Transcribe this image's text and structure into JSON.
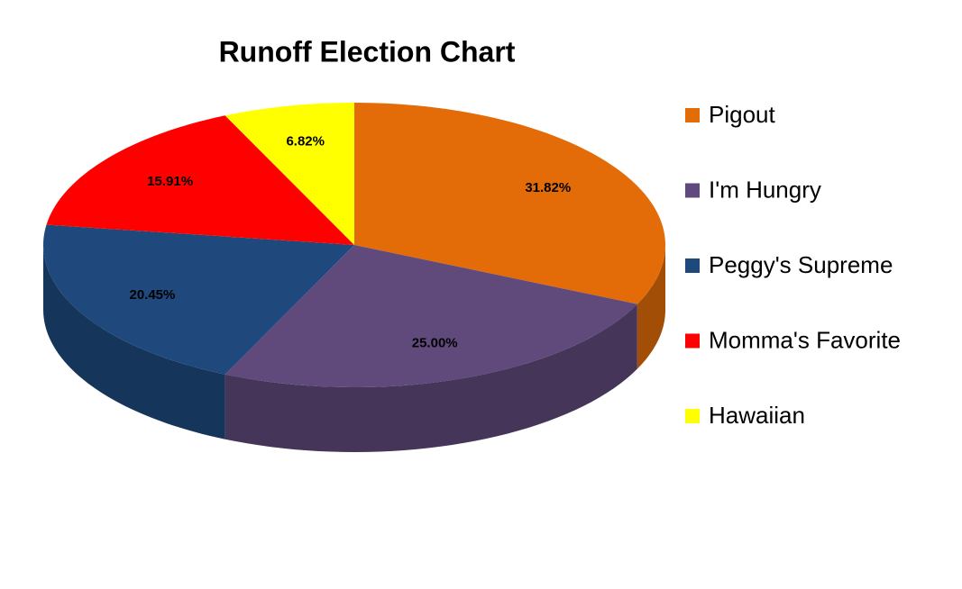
{
  "chart_data": {
    "type": "pie",
    "title": "Runoff Election Chart",
    "categories": [
      "Pigout",
      "I'm Hungry",
      "Peggy's Supreme",
      "Momma's Favorite",
      "Hawaiian"
    ],
    "values": [
      31.82,
      25.0,
      20.45,
      15.91,
      6.82
    ],
    "value_labels": [
      "31.82%",
      "25.00%",
      "20.45%",
      "15.91%",
      "6.82%"
    ],
    "colors": [
      "#e36c09",
      "#604a7b",
      "#1f497d",
      "#ff0000",
      "#ffff00"
    ],
    "legend": "right"
  }
}
